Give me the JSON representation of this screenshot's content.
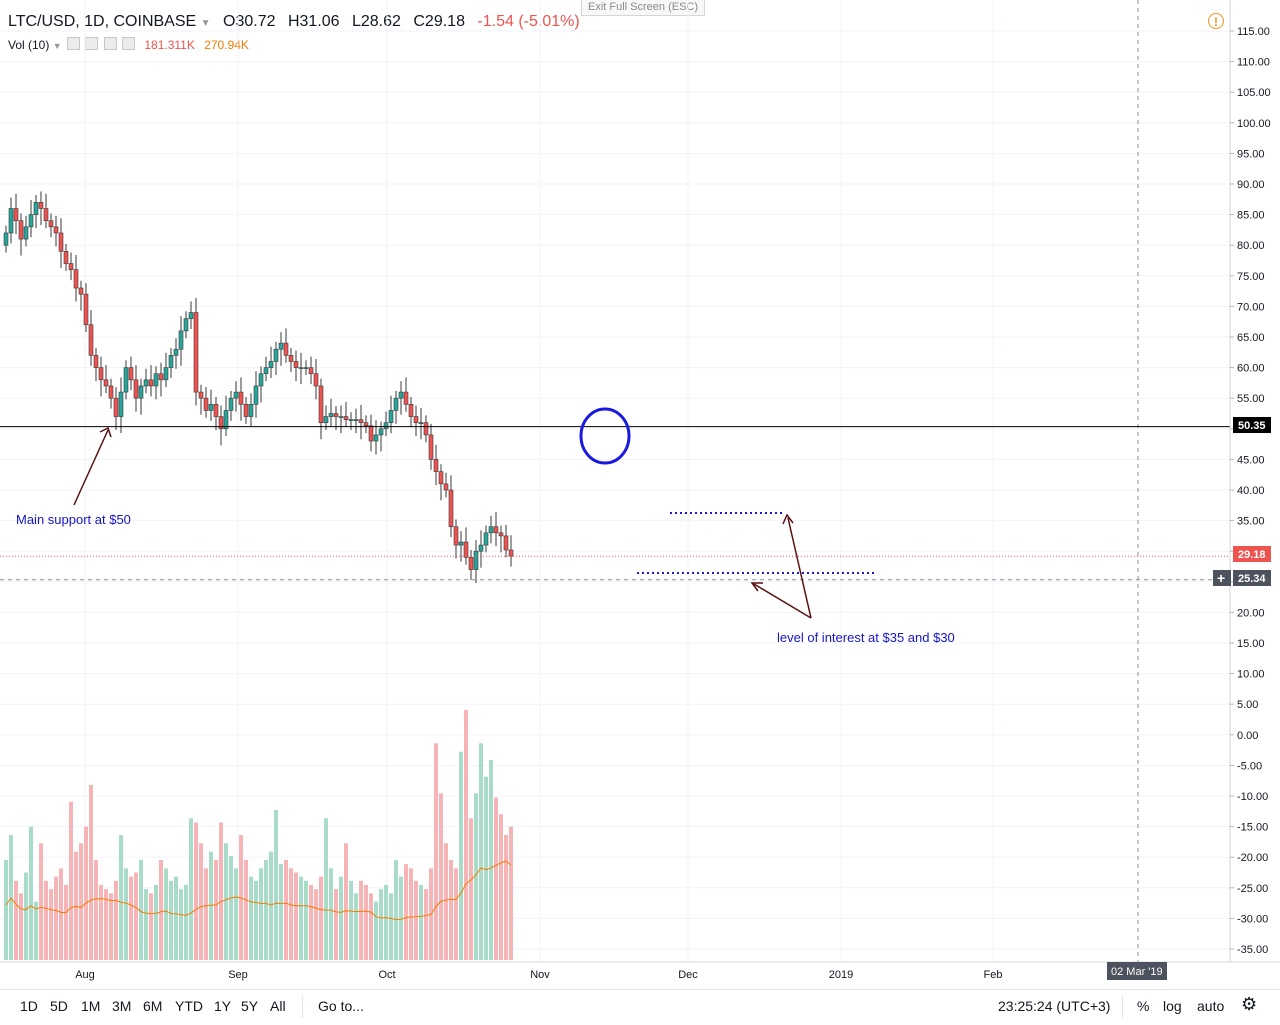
{
  "header": {
    "symbol": "LTC/USD, 1D, COINBASE",
    "open": "O30.72",
    "high": "H31.06",
    "low": "L28.62",
    "close": "C29.18",
    "change": "-1.54 (-5.01%)"
  },
  "volume_indicator": {
    "label": "Vol (10)",
    "value1": "181.311K",
    "value2": "270.94K"
  },
  "exit_fullscreen": "Exit Full Screen (ESC)",
  "price_tags": {
    "support": "50.35",
    "last": "29.18",
    "crosshair": "25.34",
    "crosshair_date": "02 Mar '19"
  },
  "annotations": {
    "support": "Main support at $50",
    "interest": "level of interest at $35 and $30"
  },
  "bottom_bar": {
    "ranges": [
      "1D",
      "5D",
      "1M",
      "3M",
      "6M",
      "YTD",
      "1Y",
      "5Y",
      "All"
    ],
    "goto": "Go to...",
    "clock": "23:25:24 (UTC+3)",
    "percent": "%",
    "log": "log",
    "auto": "auto"
  },
  "colors": {
    "up": "#26a69a",
    "down": "#ef5350",
    "support_line": "#000000",
    "dotted": "#1a1adf",
    "arrow": "#5a1010",
    "vol_ma": "#f57c00"
  },
  "chart_data": {
    "type": "candlestick",
    "symbol": "LTC/USD",
    "interval": "1D",
    "y_axis": {
      "min": -35,
      "max": 115,
      "ticks": [
        "115.00",
        "110.00",
        "105.00",
        "100.00",
        "95.00",
        "90.00",
        "85.00",
        "80.00",
        "75.00",
        "70.00",
        "65.00",
        "60.00",
        "55.00",
        "50.00",
        "45.00",
        "40.00",
        "35.00",
        "30.00",
        "25.00",
        "20.00",
        "15.00",
        "10.00",
        "5.00",
        "0.00",
        "-5.00",
        "-10.00",
        "-15.00",
        "-20.00",
        "-25.00",
        "-30.00",
        "-35.00"
      ]
    },
    "x_axis": {
      "ticks": [
        "Aug",
        "Sep",
        "Oct",
        "Nov",
        "Dec",
        "2019",
        "Feb"
      ]
    },
    "horizontal_lines": [
      {
        "value": 50.35,
        "style": "solid"
      },
      {
        "value": 29.18,
        "style": "dotted-red"
      },
      {
        "value": 25.34,
        "style": "dashed"
      }
    ],
    "close": [
      82,
      86,
      84,
      81,
      83,
      85,
      87,
      86,
      84,
      83,
      82,
      79,
      77,
      76,
      73,
      72,
      67,
      62,
      60,
      58,
      57,
      55,
      52,
      56,
      60,
      58,
      55,
      57,
      58,
      57,
      59,
      58,
      60,
      62,
      63,
      66,
      68,
      69,
      56,
      55,
      53,
      54,
      52,
      50,
      53,
      55,
      56,
      54,
      52,
      54,
      57,
      59,
      60,
      61,
      63,
      64,
      62,
      61,
      60,
      60,
      60,
      59,
      57,
      51,
      52,
      52.5,
      52,
      52,
      51.5,
      51.5,
      51.5,
      51,
      50.5,
      48,
      49,
      50,
      51,
      53,
      55,
      56,
      54,
      52,
      51,
      51,
      49,
      45,
      43,
      41,
      40,
      34,
      31,
      31.5,
      29,
      27,
      30,
      31,
      33,
      34,
      33,
      32.5,
      30.2,
      29.18
    ],
    "volume_scale": {
      "max_approx": 300000
    },
    "volume": [
      120,
      150,
      95,
      80,
      105,
      160,
      70,
      140,
      95,
      85,
      100,
      110,
      90,
      190,
      130,
      140,
      160,
      210,
      120,
      90,
      85,
      80,
      95,
      150,
      110,
      100,
      105,
      120,
      85,
      80,
      90,
      120,
      110,
      95,
      100,
      85,
      90,
      170,
      165,
      140,
      110,
      130,
      120,
      165,
      140,
      125,
      110,
      150,
      120,
      100,
      95,
      110,
      120,
      130,
      180,
      115,
      120,
      110,
      105,
      100,
      95,
      90,
      85,
      100,
      170,
      110,
      85,
      100,
      140,
      95,
      80,
      95,
      90,
      80,
      70,
      85,
      90,
      80,
      120,
      100,
      115,
      110,
      95,
      90,
      85,
      110,
      260,
      200,
      140,
      120,
      110,
      250,
      300,
      170,
      200,
      260,
      220,
      240,
      195,
      175,
      150,
      160
    ]
  }
}
